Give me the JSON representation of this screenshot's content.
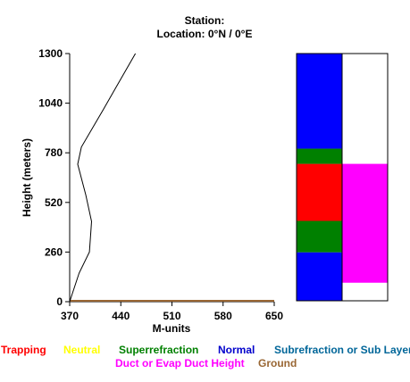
{
  "header": {
    "station_line": "Station:",
    "location_line": "Location:   0°N /   0°E"
  },
  "chart_data": {
    "type": "line",
    "xlabel": "M-units",
    "ylabel": "Height (meters)",
    "xlim": [
      370,
      650
    ],
    "ylim": [
      0,
      1300
    ],
    "x_ticks": [
      "370",
      "440",
      "510",
      "580",
      "650"
    ],
    "y_ticks": [
      "0",
      "260",
      "520",
      "780",
      "1040",
      "1300"
    ],
    "series": [
      {
        "color": "#000000",
        "points": [
          {
            "x": 370,
            "y": 0
          },
          {
            "x": 383,
            "y": 150
          },
          {
            "x": 397,
            "y": 260
          },
          {
            "x": 400,
            "y": 420
          },
          {
            "x": 392,
            "y": 560
          },
          {
            "x": 381,
            "y": 720
          },
          {
            "x": 386,
            "y": 810
          },
          {
            "x": 415,
            "y": 1000
          },
          {
            "x": 460,
            "y": 1300
          }
        ]
      }
    ],
    "ground_line_color": "#996633"
  },
  "bars": {
    "ymax": 1300,
    "refraction_column": [
      {
        "from": 0,
        "to": 255,
        "color": "#0000ff",
        "category": "normal"
      },
      {
        "from": 255,
        "to": 420,
        "color": "#008000",
        "category": "superrefraction"
      },
      {
        "from": 420,
        "to": 720,
        "color": "#ff0000",
        "category": "trapping"
      },
      {
        "from": 720,
        "to": 800,
        "color": "#008000",
        "category": "superrefraction"
      },
      {
        "from": 800,
        "to": 1300,
        "color": "#0000ff",
        "category": "normal"
      }
    ],
    "duct_column": [
      {
        "from": 95,
        "to": 720,
        "color": "#ff00ff",
        "category": "duct"
      }
    ]
  },
  "legend": [
    {
      "label": "Trapping",
      "color": "#ff0000"
    },
    {
      "label": "Neutral",
      "color": "#ffff00"
    },
    {
      "label": "Superrefraction",
      "color": "#008000"
    },
    {
      "label": "Normal",
      "color": "#0000cc"
    },
    {
      "label": "Subrefraction or Sub Layer",
      "color": "#006699"
    },
    {
      "label": "Duct or Evap Duct Height",
      "color": "#ff00ff"
    },
    {
      "label": "Ground",
      "color": "#996633"
    }
  ]
}
